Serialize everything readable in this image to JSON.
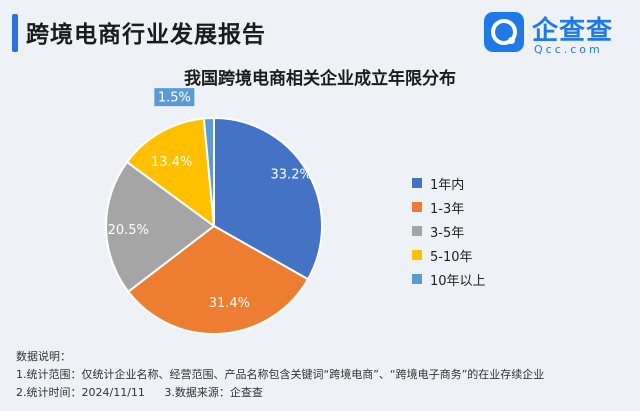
{
  "header": {
    "title": "跨境电商行业发展报告"
  },
  "logo": {
    "name": "企查查",
    "sub": "Qcc.com"
  },
  "chart_data": {
    "type": "pie",
    "title": "我国跨境电商相关企业成立年限分布",
    "categories": [
      "1年内",
      "1-3年",
      "3-5年",
      "5-10年",
      "10年以上"
    ],
    "values": [
      33.2,
      31.4,
      20.5,
      13.4,
      1.5
    ],
    "labels": [
      "33.2%",
      "31.4%",
      "20.5%",
      "13.4%",
      "1.5%"
    ],
    "colors": [
      "#4472c4",
      "#ed7d31",
      "#a5a5a5",
      "#ffc000",
      "#5b9bd5"
    ],
    "legend_position": "right"
  },
  "notes": {
    "heading": "数据说明：",
    "line1": "1.统计范围：仅统计企业名称、经营范围、产品名称包含关键词“跨境电商”、“跨境电子商务”的在业存续企业",
    "line2a": "2.统计时间：2024/11/11",
    "line2b": "3.数据来源：企查查"
  }
}
